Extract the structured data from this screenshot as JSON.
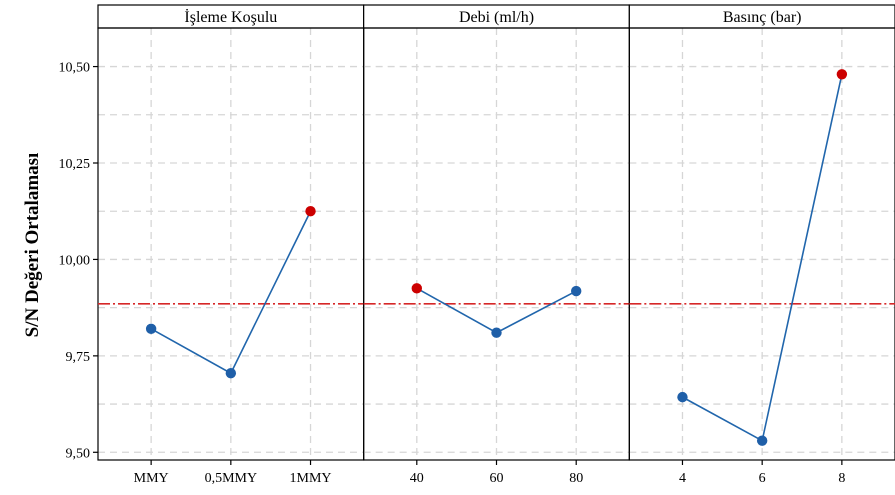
{
  "chart_data": {
    "type": "line",
    "title": "",
    "ylabel": "S/N Değeri Ortalaması",
    "xlabel": "",
    "ylim": [
      9.48,
      10.6
    ],
    "yticks": [
      "9,50",
      "9,75",
      "10,00",
      "10,25",
      "10,50"
    ],
    "ytick_values": [
      9.5,
      9.75,
      10.0,
      10.25,
      10.5
    ],
    "reference_line": 9.885,
    "grid": true,
    "colors": {
      "line": "#2166ac",
      "point": "#1f5fa8",
      "max_point": "#cc0000",
      "reference": "#d62728"
    },
    "panels": [
      {
        "title": "İşleme Koşulu",
        "categories": [
          "MMY",
          "0,5MMY",
          "1MMY"
        ],
        "values": [
          9.82,
          9.705,
          10.125
        ]
      },
      {
        "title": "Debi (ml/h)",
        "categories": [
          "40",
          "60",
          "80"
        ],
        "values": [
          9.925,
          9.81,
          9.918
        ]
      },
      {
        "title": "Basınç (bar)",
        "categories": [
          "4",
          "6",
          "8"
        ],
        "values": [
          9.643,
          9.53,
          10.48
        ]
      }
    ]
  }
}
